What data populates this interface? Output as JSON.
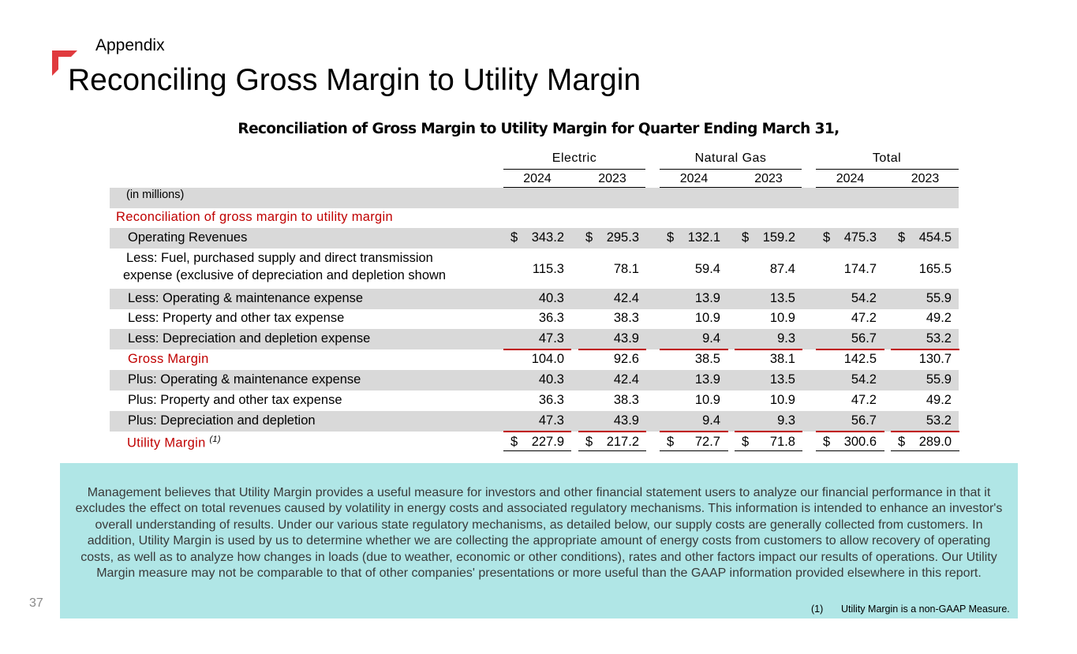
{
  "header": {
    "kicker": "Appendix",
    "title": "Reconciling Gross Margin to Utility Margin",
    "accent_color": "#e03a3e"
  },
  "table": {
    "title": "Reconciliation of Gross Margin to Utility Margin for Quarter Ending March 31,",
    "groups": [
      "Electric",
      "Natural Gas",
      "Total"
    ],
    "years": [
      "2024",
      "2023",
      "2024",
      "2023",
      "2024",
      "2023"
    ],
    "units_note": "(in millions)",
    "section_heading": "Reconciliation of gross margin to utility margin",
    "currency_symbol": "$",
    "rows": [
      {
        "label": "Operating Revenues",
        "values": [
          "343.2",
          "295.3",
          "132.1",
          "159.2",
          "475.3",
          "454.5"
        ]
      },
      {
        "label_line1": "Less:  Fuel, purchased supply and direct transmission",
        "label_line2": "expense (exclusive of depreciation and depletion shown",
        "values": [
          "115.3",
          "78.1",
          "59.4",
          "87.4",
          "174.7",
          "165.5"
        ]
      },
      {
        "label": "Less:  Operating & maintenance expense",
        "values": [
          "40.3",
          "42.4",
          "13.9",
          "13.5",
          "54.2",
          "55.9"
        ]
      },
      {
        "label": "Less:  Property and other tax expense",
        "values": [
          "36.3",
          "38.3",
          "10.9",
          "10.9",
          "47.2",
          "49.2"
        ]
      },
      {
        "label": "Less:  Depreciation and depletion expense",
        "values": [
          "47.3",
          "43.9",
          "9.4",
          "9.3",
          "56.7",
          "53.2"
        ]
      },
      {
        "label": "Gross Margin",
        "values": [
          "104.0",
          "92.6",
          "38.5",
          "38.1",
          "142.5",
          "130.7"
        ]
      },
      {
        "label": "Plus:  Operating & maintenance expense",
        "values": [
          "40.3",
          "42.4",
          "13.9",
          "13.5",
          "54.2",
          "55.9"
        ]
      },
      {
        "label": "Plus:  Property and other tax expense",
        "values": [
          "36.3",
          "38.3",
          "10.9",
          "10.9",
          "47.2",
          "49.2"
        ]
      },
      {
        "label": "Plus:  Depreciation and depletion",
        "values": [
          "47.3",
          "43.9",
          "9.4",
          "9.3",
          "56.7",
          "53.2"
        ]
      },
      {
        "label": "Utility Margin",
        "footnote_ref": "(1)",
        "values": [
          "227.9",
          "217.2",
          "72.7",
          "71.8",
          "300.6",
          "289.0"
        ]
      }
    ]
  },
  "note": {
    "text": "Management believes that Utility Margin provides a useful measure for investors and other financial statement users to analyze our financial performance in that it excludes the effect on total revenues caused by volatility in energy costs and associated regulatory mechanisms. This information is intended to enhance an investor's overall understanding of results. Under our various state regulatory mechanisms, as detailed below, our supply costs are generally collected from customers. In addition, Utility Margin is used by us to determine whether we are collecting the appropriate amount of energy costs from customers to allow recovery of operating costs, as well as to analyze how changes in loads (due to weather, economic or other conditions), rates and other factors impact our results of operations. Our Utility Margin measure may not be comparable to that of other companies' presentations or more useful than the GAAP information provided elsewhere in this report.",
    "footnote_number": "(1)",
    "footnote_text": "Utility Margin is a non-GAAP Measure."
  },
  "footer": {
    "page_number": "37"
  }
}
